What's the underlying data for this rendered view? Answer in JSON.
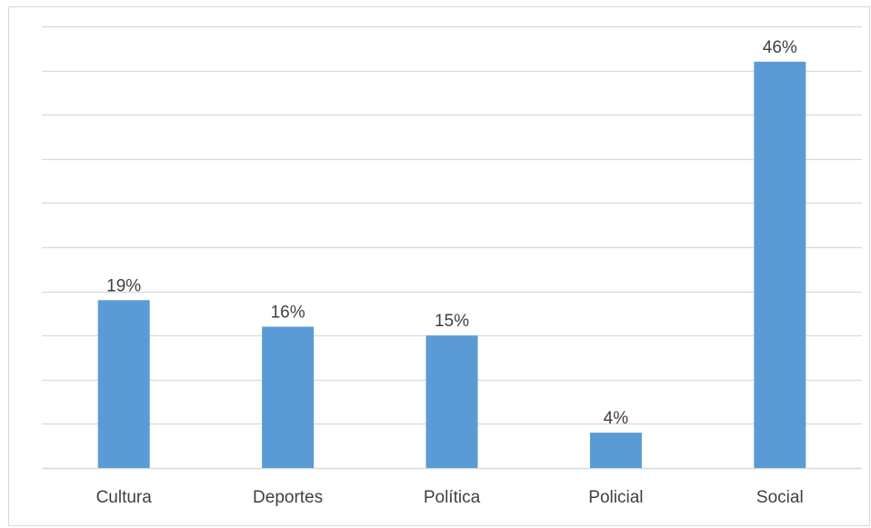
{
  "chart_data": {
    "type": "bar",
    "title": "",
    "xlabel": "",
    "ylabel": "",
    "categories": [
      "Cultura",
      "Deportes",
      "Política",
      "Policial",
      "Social"
    ],
    "values": [
      19,
      16,
      15,
      4,
      46
    ],
    "data_labels": [
      "19%",
      "16%",
      "15%",
      "4%",
      "46%"
    ],
    "ylim": [
      0,
      50
    ],
    "y_gridline_step": 5,
    "y_axis_visible": false,
    "grid": true,
    "legend": "none",
    "bar_color": "#5b9bd5",
    "gridline_color": "#d9d9d9",
    "text_color": "#404040"
  }
}
